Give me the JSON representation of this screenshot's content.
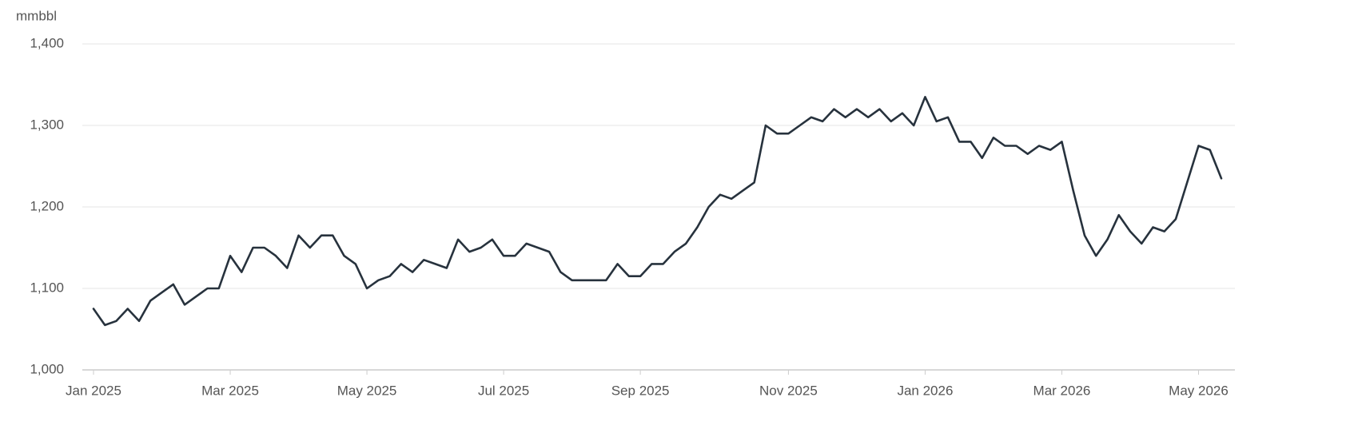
{
  "chart_data": {
    "type": "line",
    "y_label": "mmbbl",
    "categories": [
      "Jan 2025",
      null,
      null,
      null,
      null,
      null,
      null,
      null,
      null,
      null,
      null,
      null,
      "Mar 2025",
      null,
      null,
      null,
      null,
      null,
      null,
      null,
      null,
      null,
      null,
      null,
      "May 2025",
      null,
      null,
      null,
      null,
      null,
      null,
      null,
      null,
      null,
      null,
      null,
      "Jul 2025",
      null,
      null,
      null,
      null,
      null,
      null,
      null,
      null,
      null,
      null,
      null,
      "Sep 2025",
      null,
      null,
      null,
      null,
      null,
      null,
      null,
      null,
      null,
      null,
      null,
      null,
      "Nov 2025",
      null,
      null,
      null,
      null,
      null,
      null,
      null,
      null,
      null,
      null,
      null,
      "Jan 2026",
      null,
      null,
      null,
      null,
      null,
      null,
      null,
      null,
      null,
      null,
      null,
      "Mar 2026",
      null,
      null,
      null,
      null,
      null,
      null,
      null,
      null,
      null,
      null,
      null,
      "May 2026",
      null,
      null
    ],
    "values": [
      1075,
      1055,
      1060,
      1075,
      1060,
      1085,
      1095,
      1105,
      1080,
      1090,
      1100,
      1100,
      1140,
      1120,
      1150,
      1150,
      1140,
      1125,
      1165,
      1150,
      1165,
      1165,
      1140,
      1130,
      1100,
      1110,
      1115,
      1130,
      1120,
      1135,
      1130,
      1125,
      1160,
      1145,
      1150,
      1160,
      1140,
      1140,
      1155,
      1150,
      1145,
      1120,
      1110,
      1110,
      1110,
      1110,
      1130,
      1115,
      1115,
      1130,
      1130,
      1145,
      1155,
      1175,
      1200,
      1215,
      1210,
      1220,
      1230,
      1300,
      1290,
      1290,
      1300,
      1310,
      1305,
      1320,
      1310,
      1320,
      1310,
      1320,
      1305,
      1315,
      1300,
      1335,
      1305,
      1310,
      1280,
      1280,
      1260,
      1285,
      1275,
      1275,
      1265,
      1275,
      1270,
      1280,
      1220,
      1165,
      1140,
      1160,
      1190,
      1170,
      1155,
      1175,
      1170,
      1185,
      1230,
      1275,
      1270,
      1235
    ],
    "color": "#27323d",
    "ylim": [
      1000,
      1400
    ],
    "yticks": [
      {
        "value": 1000,
        "label": "1,000"
      },
      {
        "value": 1100,
        "label": "1,100"
      },
      {
        "value": 1200,
        "label": "1,200"
      },
      {
        "value": 1300,
        "label": "1,300"
      },
      {
        "value": 1400,
        "label": "1,400"
      }
    ],
    "grid": true
  }
}
